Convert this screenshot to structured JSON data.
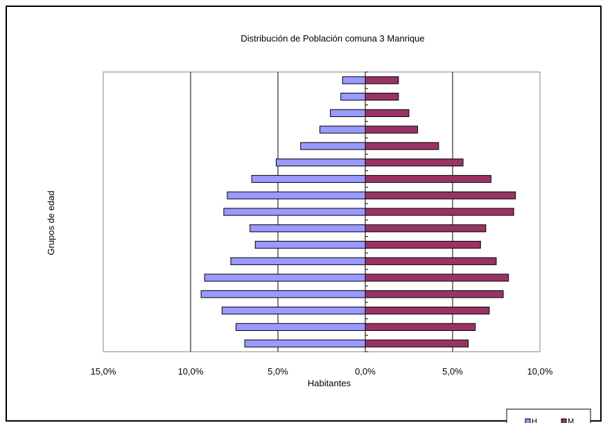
{
  "chart_data": {
    "type": "bar",
    "orientation": "horizontal",
    "title": "Distribución de Población comuna 3 Manrique",
    "xlabel": "Habitantes",
    "ylabel": "Grupos de edad",
    "xlim": [
      -15,
      10
    ],
    "xticks": [
      -15,
      -10,
      -5,
      0,
      5,
      10
    ],
    "xtick_labels": [
      "15,0%",
      "10,0%",
      "5,0%",
      "0,0%",
      "5,0%",
      "10,0%"
    ],
    "grid": true,
    "legend_position": "bottom-right",
    "series": [
      {
        "name": "H",
        "color": "#9999ff",
        "values": [
          -6.9,
          -7.4,
          -8.2,
          -9.4,
          -9.2,
          -7.7,
          -6.3,
          -6.6,
          -8.1,
          -7.9,
          -6.5,
          -5.1,
          -3.7,
          -2.6,
          -2.0,
          -1.4,
          -1.3
        ]
      },
      {
        "name": "M",
        "color": "#993366",
        "values": [
          5.9,
          6.3,
          7.1,
          7.9,
          8.2,
          7.5,
          6.6,
          6.9,
          8.5,
          8.6,
          7.2,
          5.6,
          4.2,
          3.0,
          2.5,
          1.9,
          1.9
        ]
      }
    ]
  }
}
